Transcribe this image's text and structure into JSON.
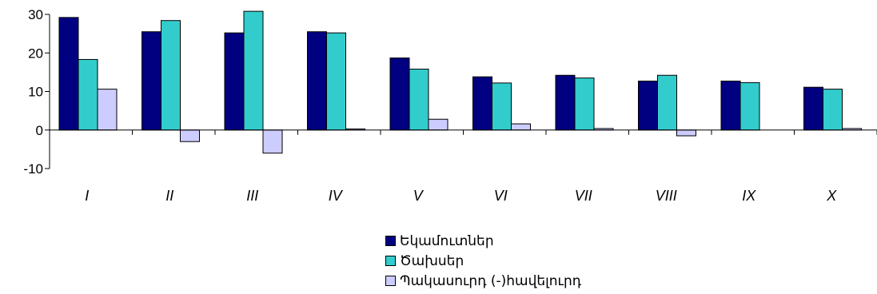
{
  "chart_data": {
    "type": "bar",
    "categories": [
      "I",
      "II",
      "III",
      "IV",
      "V",
      "VI",
      "VII",
      "VIII",
      "IX",
      "X"
    ],
    "series": [
      {
        "name": "Եկամուտներ",
        "color": "#000080",
        "values": [
          29.2,
          25.5,
          25.2,
          25.5,
          18.7,
          13.8,
          14.2,
          12.7,
          12.7,
          11.1
        ]
      },
      {
        "name": "Ծախսեր",
        "color": "#33CCCC",
        "values": [
          18.3,
          28.4,
          30.8,
          25.2,
          15.8,
          12.2,
          13.5,
          14.2,
          12.3,
          10.6
        ]
      },
      {
        "name": "Պակասուրդ (-)հավելուրդ",
        "color": "#CCCCFF",
        "values": [
          10.6,
          -3.0,
          -6.0,
          0.3,
          2.8,
          1.6,
          0.4,
          -1.5,
          0.0,
          0.4
        ]
      }
    ],
    "yticks": [
      -10,
      0,
      10,
      20,
      30
    ],
    "ylim": [
      -10,
      30
    ],
    "grid": false,
    "legend_position": "bottom"
  }
}
